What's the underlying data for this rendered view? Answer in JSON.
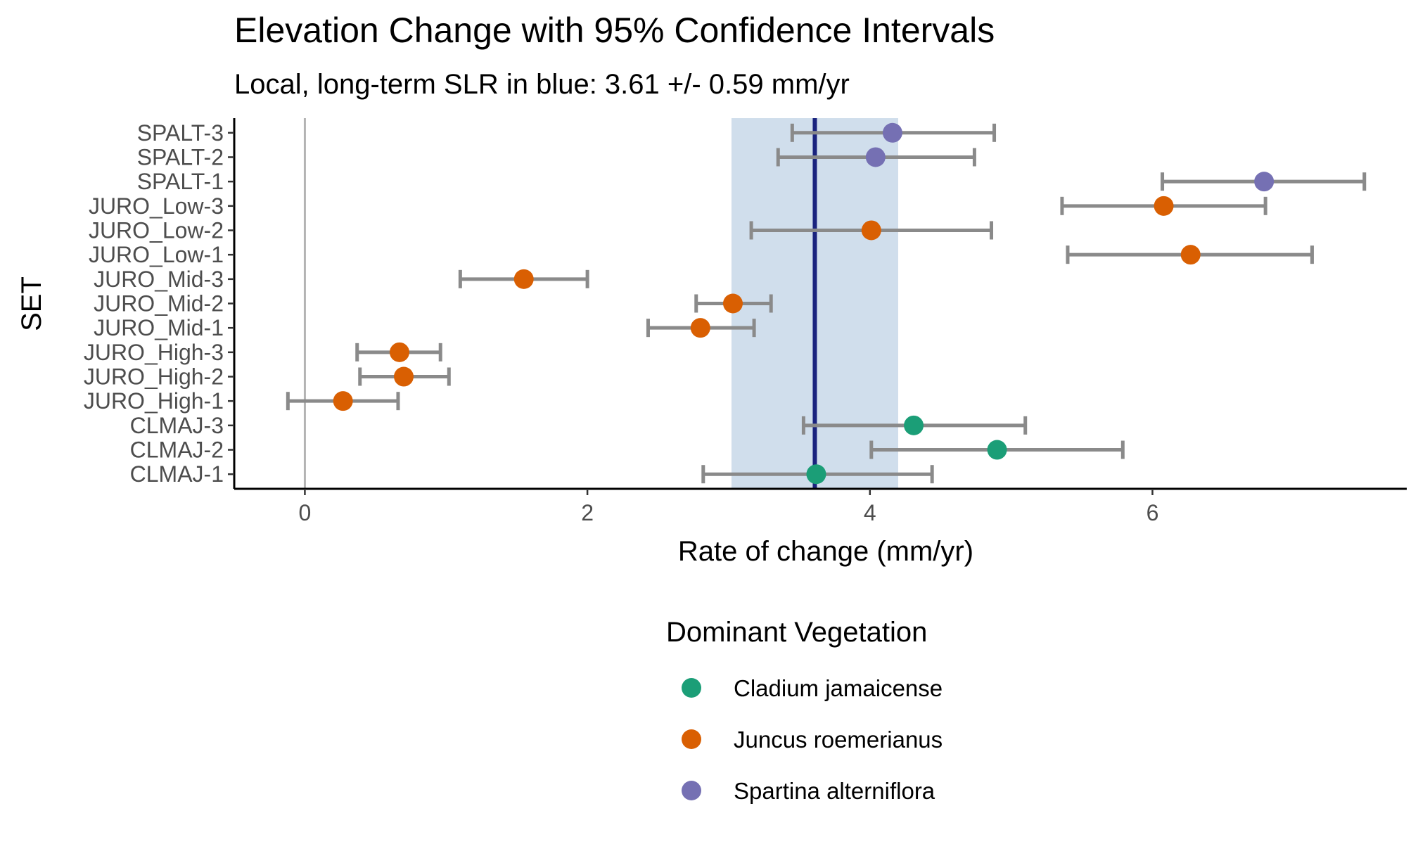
{
  "chart_data": {
    "type": "scatter",
    "title": "Elevation Change with 95% Confidence Intervals",
    "subtitle": "Local, long-term SLR in blue: 3.61 +/- 0.59 mm/yr",
    "xlabel": "Rate of change (mm/yr)",
    "ylabel": "SET",
    "xlim": [
      -0.5,
      7.8
    ],
    "x_ticks": [
      0,
      2,
      4,
      6
    ],
    "x_tick_labels": [
      "0",
      "2",
      "4",
      "6"
    ],
    "reference_line_x": 0,
    "slr": {
      "value": 3.61,
      "ci": 0.59,
      "lower": 3.02,
      "upper": 4.2
    },
    "categories": [
      "CLMAJ-1",
      "CLMAJ-2",
      "CLMAJ-3",
      "JURO_High-1",
      "JURO_High-2",
      "JURO_High-3",
      "JURO_Mid-1",
      "JURO_Mid-2",
      "JURO_Mid-3",
      "JURO_Low-1",
      "JURO_Low-2",
      "JURO_Low-3",
      "SPALT-1",
      "SPALT-2",
      "SPALT-3"
    ],
    "points": [
      {
        "set": "CLMAJ-1",
        "rate": 3.62,
        "lower": 2.82,
        "upper": 4.44,
        "vegetation": "Cladium jamaicense"
      },
      {
        "set": "CLMAJ-2",
        "rate": 4.9,
        "lower": 4.01,
        "upper": 5.79,
        "vegetation": "Cladium jamaicense"
      },
      {
        "set": "CLMAJ-3",
        "rate": 4.31,
        "lower": 3.53,
        "upper": 5.1,
        "vegetation": "Cladium jamaicense"
      },
      {
        "set": "JURO_High-1",
        "rate": 0.27,
        "lower": -0.12,
        "upper": 0.66,
        "vegetation": "Juncus roemerianus"
      },
      {
        "set": "JURO_High-2",
        "rate": 0.7,
        "lower": 0.39,
        "upper": 1.02,
        "vegetation": "Juncus roemerianus"
      },
      {
        "set": "JURO_High-3",
        "rate": 0.67,
        "lower": 0.37,
        "upper": 0.96,
        "vegetation": "Juncus roemerianus"
      },
      {
        "set": "JURO_Mid-1",
        "rate": 2.8,
        "lower": 2.43,
        "upper": 3.18,
        "vegetation": "Juncus roemerianus"
      },
      {
        "set": "JURO_Mid-2",
        "rate": 3.03,
        "lower": 2.77,
        "upper": 3.3,
        "vegetation": "Juncus roemerianus"
      },
      {
        "set": "JURO_Mid-3",
        "rate": 1.55,
        "lower": 1.1,
        "upper": 2.0,
        "vegetation": "Juncus roemerianus"
      },
      {
        "set": "JURO_Low-1",
        "rate": 6.27,
        "lower": 5.4,
        "upper": 7.13,
        "vegetation": "Juncus roemerianus"
      },
      {
        "set": "JURO_Low-2",
        "rate": 4.01,
        "lower": 3.16,
        "upper": 4.86,
        "vegetation": "Juncus roemerianus"
      },
      {
        "set": "JURO_Low-3",
        "rate": 6.08,
        "lower": 5.36,
        "upper": 6.8,
        "vegetation": "Juncus roemerianus"
      },
      {
        "set": "SPALT-1",
        "rate": 6.79,
        "lower": 6.07,
        "upper": 7.5,
        "vegetation": "Spartina alterniflora"
      },
      {
        "set": "SPALT-2",
        "rate": 4.04,
        "lower": 3.35,
        "upper": 4.74,
        "vegetation": "Spartina alterniflora"
      },
      {
        "set": "SPALT-3",
        "rate": 4.16,
        "lower": 3.45,
        "upper": 4.88,
        "vegetation": "Spartina alterniflora"
      }
    ],
    "legend": {
      "title": "Dominant Vegetation",
      "placement": "bottom",
      "entries": [
        {
          "label": "Cladium jamaicense",
          "color": "#1b9e77"
        },
        {
          "label": "Juncus roemerianus",
          "color": "#d95f02"
        },
        {
          "label": "Spartina alterniflora",
          "color": "#7570b3"
        }
      ]
    },
    "colors": {
      "slr_line": "#1a237e",
      "slr_band": "#d0deec",
      "zero_line": "#b3b3b3",
      "error_bar": "#8a8a8a",
      "axis": "#000000"
    }
  }
}
